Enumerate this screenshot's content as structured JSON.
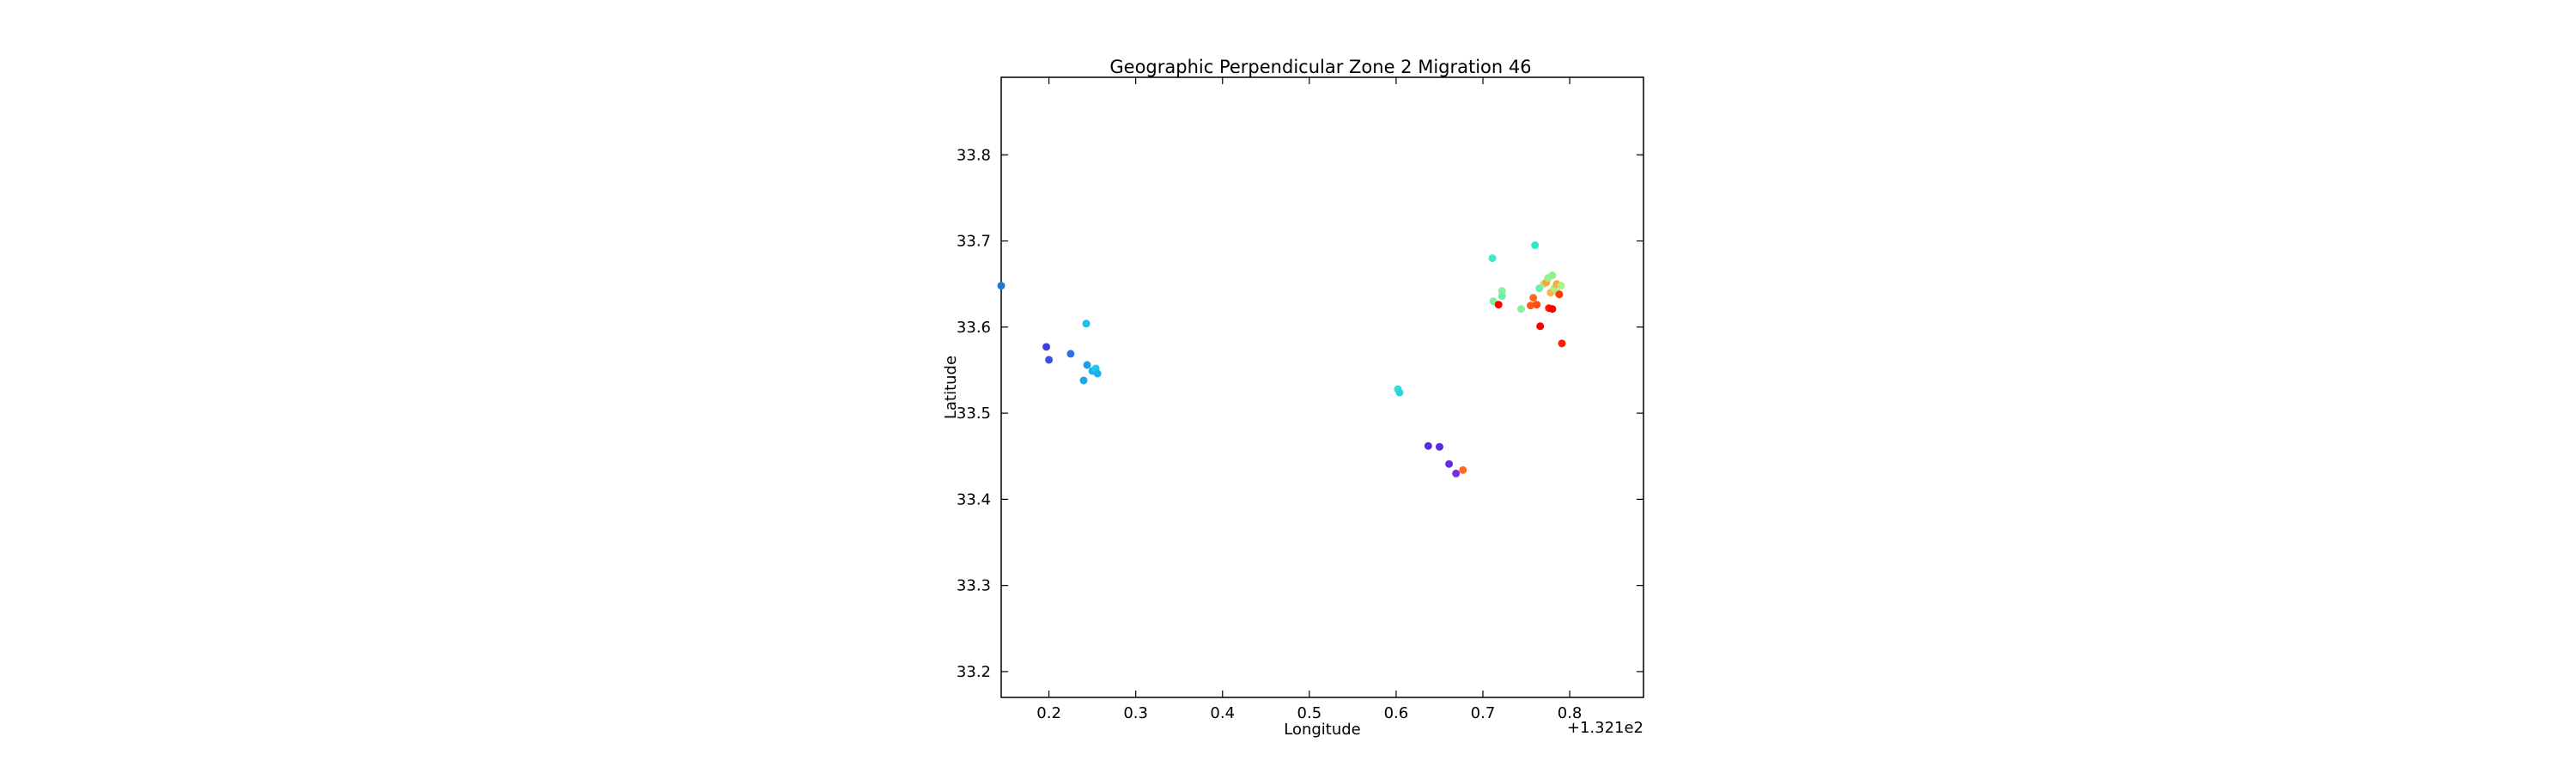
{
  "chart_data": {
    "type": "scatter",
    "title": "Geographic Perpendicular Zone 2 Migration 46",
    "xlabel": "Longitude",
    "ylabel": "Latitude",
    "x_offset_label": "+1.321e2",
    "xlim": [
      0.145,
      0.885
    ],
    "ylim": [
      33.17,
      33.89
    ],
    "x_ticks": [
      {
        "value": 0.2,
        "label": "0.2"
      },
      {
        "value": 0.3,
        "label": "0.3"
      },
      {
        "value": 0.4,
        "label": "0.4"
      },
      {
        "value": 0.5,
        "label": "0.5"
      },
      {
        "value": 0.6,
        "label": "0.6"
      },
      {
        "value": 0.7,
        "label": "0.7"
      },
      {
        "value": 0.8,
        "label": "0.8"
      }
    ],
    "y_ticks": [
      {
        "value": 33.2,
        "label": "33.2"
      },
      {
        "value": 33.3,
        "label": "33.3"
      },
      {
        "value": 33.4,
        "label": "33.4"
      },
      {
        "value": 33.5,
        "label": "33.5"
      },
      {
        "value": 33.6,
        "label": "33.6"
      },
      {
        "value": 33.7,
        "label": "33.7"
      },
      {
        "value": 33.8,
        "label": "33.8"
      }
    ],
    "grid": false,
    "legend": "none",
    "points": [
      {
        "x": 0.145,
        "y": 33.648,
        "color": "#1f77d0"
      },
      {
        "x": 0.197,
        "y": 33.577,
        "color": "#4040e0"
      },
      {
        "x": 0.2,
        "y": 33.562,
        "color": "#3a50e0"
      },
      {
        "x": 0.225,
        "y": 33.569,
        "color": "#2f70e6"
      },
      {
        "x": 0.243,
        "y": 33.604,
        "color": "#19c0ee"
      },
      {
        "x": 0.24,
        "y": 33.538,
        "color": "#1fa5ea"
      },
      {
        "x": 0.244,
        "y": 33.556,
        "color": "#1d9fe8"
      },
      {
        "x": 0.25,
        "y": 33.549,
        "color": "#1ab4ec"
      },
      {
        "x": 0.254,
        "y": 33.552,
        "color": "#1ec8ee"
      },
      {
        "x": 0.256,
        "y": 33.546,
        "color": "#1cb0ec"
      },
      {
        "x": 0.602,
        "y": 33.528,
        "color": "#2fe0d4"
      },
      {
        "x": 0.604,
        "y": 33.524,
        "color": "#2cd4dc"
      },
      {
        "x": 0.637,
        "y": 33.462,
        "color": "#5530e0"
      },
      {
        "x": 0.65,
        "y": 33.461,
        "color": "#5a2ce0"
      },
      {
        "x": 0.661,
        "y": 33.441,
        "color": "#6230e0"
      },
      {
        "x": 0.669,
        "y": 33.43,
        "color": "#7a30dc"
      },
      {
        "x": 0.677,
        "y": 33.434,
        "color": "#ff6a20"
      },
      {
        "x": 0.711,
        "y": 33.68,
        "color": "#3ee8c8"
      },
      {
        "x": 0.76,
        "y": 33.695,
        "color": "#30e8d0"
      },
      {
        "x": 0.712,
        "y": 33.63,
        "color": "#80f0a0"
      },
      {
        "x": 0.718,
        "y": 33.626,
        "color": "#ff0000"
      },
      {
        "x": 0.722,
        "y": 33.642,
        "color": "#8af09a"
      },
      {
        "x": 0.722,
        "y": 33.636,
        "color": "#70ecb0"
      },
      {
        "x": 0.744,
        "y": 33.621,
        "color": "#8af09a"
      },
      {
        "x": 0.755,
        "y": 33.625,
        "color": "#ff5a18"
      },
      {
        "x": 0.758,
        "y": 33.634,
        "color": "#ff6a20"
      },
      {
        "x": 0.762,
        "y": 33.626,
        "color": "#ff4a10"
      },
      {
        "x": 0.766,
        "y": 33.601,
        "color": "#ff0000"
      },
      {
        "x": 0.765,
        "y": 33.645,
        "color": "#70ecb0"
      },
      {
        "x": 0.77,
        "y": 33.65,
        "color": "#a0f088"
      },
      {
        "x": 0.773,
        "y": 33.652,
        "color": "#ffa040"
      },
      {
        "x": 0.775,
        "y": 33.657,
        "color": "#98f090"
      },
      {
        "x": 0.776,
        "y": 33.622,
        "color": "#ff1a00"
      },
      {
        "x": 0.78,
        "y": 33.621,
        "color": "#ff0000"
      },
      {
        "x": 0.778,
        "y": 33.64,
        "color": "#ffb050"
      },
      {
        "x": 0.78,
        "y": 33.66,
        "color": "#90f090"
      },
      {
        "x": 0.782,
        "y": 33.645,
        "color": "#b4f080"
      },
      {
        "x": 0.785,
        "y": 33.65,
        "color": "#ffa840"
      },
      {
        "x": 0.786,
        "y": 33.64,
        "color": "#a8f088"
      },
      {
        "x": 0.788,
        "y": 33.638,
        "color": "#ff3a08"
      },
      {
        "x": 0.791,
        "y": 33.581,
        "color": "#ff2000"
      },
      {
        "x": 0.79,
        "y": 33.648,
        "color": "#b0f080"
      }
    ]
  }
}
